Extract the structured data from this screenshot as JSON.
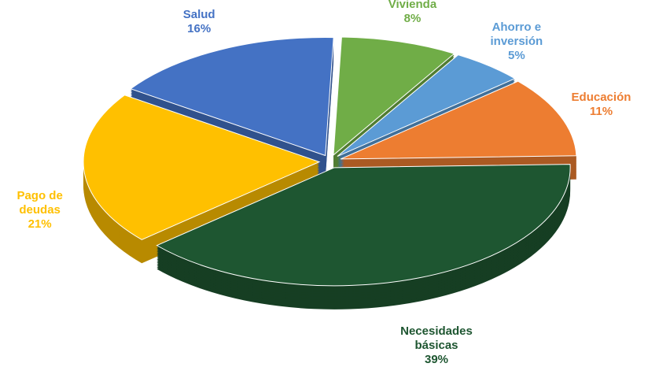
{
  "chart_data": {
    "type": "pie",
    "categories": [
      "Vivienda",
      "Ahorro e inversión",
      "Educación",
      "Necesidades básicas",
      "Pago de deudas",
      "Salud"
    ],
    "values": [
      8,
      5,
      11,
      39,
      21,
      16
    ],
    "value_labels": [
      "8%",
      "5%",
      "11%",
      "39%",
      "21%",
      "16%"
    ],
    "colors": [
      "#70ad47",
      "#5b9bd5",
      "#ed7d31",
      "#1e5631",
      "#ffc000",
      "#4472c4"
    ]
  }
}
